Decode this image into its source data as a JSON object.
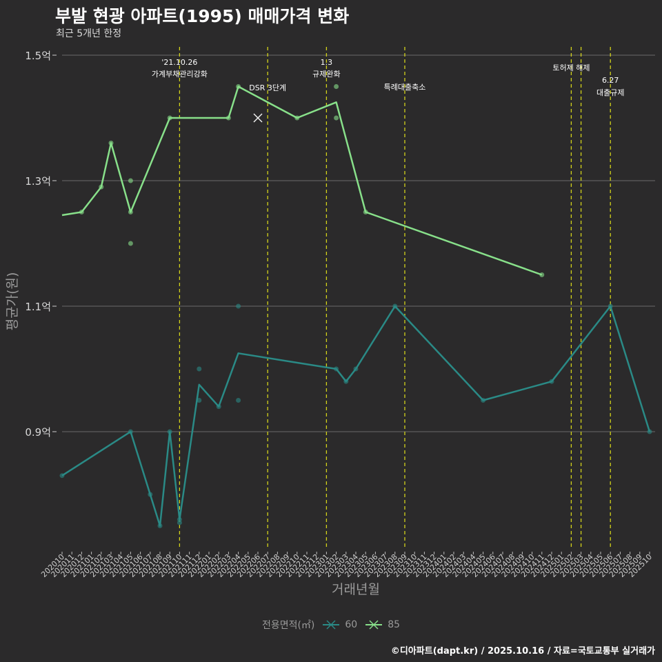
{
  "title": "부발 현광 아파트(1995) 매매가격 변화",
  "subtitle": "최근 5개년 한정",
  "caption": "©디아파트(dapt.kr) / 2025.10.16 / 자료=국토교통부 실거래가",
  "colors": {
    "background": "#2b2a2b",
    "series60": "#2a8a86",
    "series85": "#88e08a",
    "event": "#d4d41a",
    "grid": "#6b6b6b"
  },
  "chart_data": {
    "type": "line",
    "title": "부발 현광 아파트(1995) 매매가격 변화",
    "xlabel": "거래년월",
    "ylabel": "평균가(원)",
    "y_ticks": [
      {
        "value": 0.9,
        "label": "0.9억"
      },
      {
        "value": 1.1,
        "label": "1.1억"
      },
      {
        "value": 1.3,
        "label": "1.3억"
      },
      {
        "value": 1.5,
        "label": "1.5억"
      }
    ],
    "ylim": [
      0.71,
      1.52
    ],
    "x_categories": [
      "202010",
      "202011",
      "202012",
      "202101",
      "202102",
      "202103",
      "202104",
      "202105",
      "202106",
      "202107",
      "202108",
      "202109",
      "202110",
      "202111",
      "202112",
      "202201",
      "202202",
      "202203",
      "202204",
      "202205",
      "202206",
      "202207",
      "202208",
      "202209",
      "202210",
      "202211",
      "202212",
      "202301",
      "202302",
      "202303",
      "202304",
      "202305",
      "202306",
      "202307",
      "202308",
      "202309",
      "202310",
      "202311",
      "202312",
      "202401",
      "202402",
      "202403",
      "202404",
      "202405",
      "202406",
      "202407",
      "202408",
      "202409",
      "202410",
      "202411",
      "202412",
      "202501",
      "202502",
      "202503",
      "202504",
      "202505",
      "202506",
      "202507",
      "202508",
      "202509",
      "202510"
    ],
    "series": [
      {
        "name": "60",
        "line": [
          [
            0,
            0.83
          ],
          [
            7,
            0.9
          ],
          [
            9,
            0.8
          ],
          [
            10,
            0.75
          ],
          [
            11,
            0.9
          ],
          [
            12,
            0.76
          ],
          [
            14,
            0.975
          ],
          [
            16,
            0.94
          ],
          [
            18,
            1.025
          ],
          [
            28,
            1.0
          ],
          [
            29,
            0.98
          ],
          [
            30,
            1.0
          ],
          [
            34,
            1.1
          ],
          [
            43,
            0.95
          ],
          [
            50,
            0.98
          ],
          [
            56,
            1.1
          ],
          [
            60,
            0.9
          ]
        ],
        "points": [
          [
            0,
            0.83
          ],
          [
            7,
            0.9
          ],
          [
            9,
            0.8
          ],
          [
            10,
            0.75
          ],
          [
            11,
            0.9
          ],
          [
            12,
            0.76
          ],
          [
            12,
            0.755
          ],
          [
            14,
            1.0
          ],
          [
            14,
            0.95
          ],
          [
            16,
            0.94
          ],
          [
            18,
            1.1
          ],
          [
            18,
            0.95
          ],
          [
            28,
            1.0
          ],
          [
            29,
            0.98
          ],
          [
            30,
            1.0
          ],
          [
            34,
            1.1
          ],
          [
            43,
            0.95
          ],
          [
            50,
            0.98
          ],
          [
            56,
            1.1
          ],
          [
            60,
            0.9
          ]
        ]
      },
      {
        "name": "85",
        "line": [
          [
            0,
            1.245
          ],
          [
            2,
            1.25
          ],
          [
            4,
            1.29
          ],
          [
            5,
            1.36
          ],
          [
            7,
            1.25
          ],
          [
            11,
            1.4
          ],
          [
            17,
            1.4
          ],
          [
            18,
            1.45
          ],
          [
            24,
            1.4
          ],
          [
            28,
            1.425
          ],
          [
            31,
            1.25
          ],
          [
            49,
            1.15
          ]
        ],
        "points": [
          [
            2,
            1.25
          ],
          [
            4,
            1.29
          ],
          [
            5,
            1.36
          ],
          [
            7,
            1.3
          ],
          [
            7,
            1.2
          ],
          [
            7,
            1.25
          ],
          [
            11,
            1.4
          ],
          [
            17,
            1.4
          ],
          [
            18,
            1.45
          ],
          [
            24,
            1.4
          ],
          [
            28,
            1.45
          ],
          [
            28,
            1.4
          ],
          [
            31,
            1.25
          ],
          [
            49,
            1.15
          ]
        ]
      }
    ],
    "cross_marker": {
      "x": 20,
      "y": 1.4
    },
    "events": [
      {
        "x": 12,
        "line1": "'21.10.26",
        "line2": "가계부채관리강화"
      },
      {
        "x": 21,
        "line1": "DSR 3단계",
        "line2": ""
      },
      {
        "x": 27,
        "line1": "1.3",
        "line2": "규제완화"
      },
      {
        "x": 35,
        "line1": "특례대출축소",
        "line2": ""
      },
      {
        "x": 52,
        "line1": "토허제 해제",
        "line2": ""
      },
      {
        "x": 53,
        "line1": "",
        "line2": ""
      },
      {
        "x": 56,
        "line1": "6.27",
        "line2": "대출규제"
      }
    ],
    "legend_title": "전용면적(㎡)",
    "legend": [
      "60",
      "85"
    ]
  }
}
